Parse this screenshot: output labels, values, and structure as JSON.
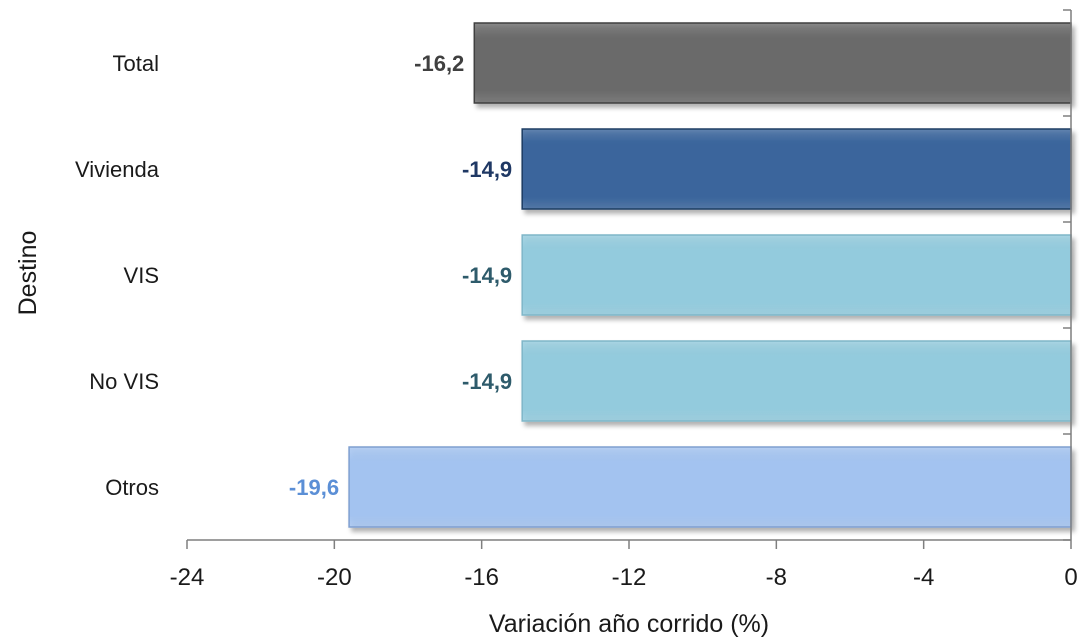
{
  "chart_data": {
    "type": "bar",
    "orientation": "horizontal",
    "categories": [
      "Total",
      "Vivienda",
      "VIS",
      "No VIS",
      "Otros"
    ],
    "values": [
      -16.2,
      -14.9,
      -14.9,
      -14.9,
      -19.6
    ],
    "data_labels": [
      "-16,2",
      "-14,9",
      "-14,9",
      "-14,9",
      "-19,6"
    ],
    "bar_colors": [
      "#6b6b6b",
      "#3a659c",
      "#93cbdd",
      "#93cbdd",
      "#a3c3f0"
    ],
    "bar_edge_colors": [
      "#3f3f3f",
      "#1f3c63",
      "#7fb6c8",
      "#7fb6c8",
      "#7f9fd0"
    ],
    "label_colors": [
      "#404040",
      "#1f3864",
      "#2e5b6b",
      "#2e5b6b",
      "#5b8fd6"
    ],
    "xlabel": "Variación año corrido (%)",
    "ylabel": "Destino",
    "xlim": [
      -24,
      0
    ],
    "xticks": [
      -24,
      -20,
      -16,
      -12,
      -8,
      -4,
      0
    ],
    "xtick_labels": [
      "-24",
      "-20",
      "-16",
      "-12",
      "-8",
      "-4",
      "0"
    ],
    "grid": false,
    "legend": "none"
  }
}
